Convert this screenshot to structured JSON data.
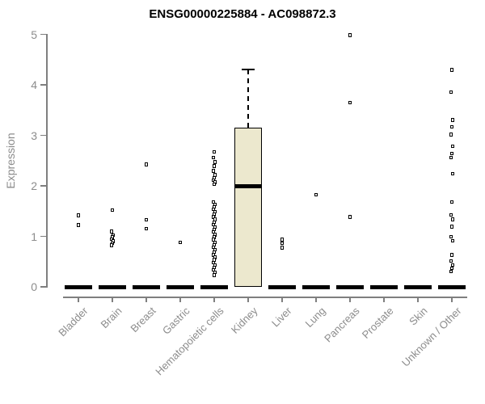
{
  "chart_data": {
    "type": "boxplot",
    "title": "ENSG00000225884 - AC098872.3",
    "ylabel": "Expression",
    "xlabel": "",
    "ylim": [
      0,
      5
    ],
    "yticks": [
      0,
      1,
      2,
      3,
      4,
      5
    ],
    "grid": false,
    "legend": "none",
    "categories": [
      "Bladder",
      "Brain",
      "Breast",
      "Gastric",
      "Hematopoietic cells",
      "Kidney",
      "Liver",
      "Lung",
      "Pancreas",
      "Prostate",
      "Skin",
      "Unknown / Other"
    ],
    "series": [
      {
        "name": "Bladder",
        "q1": 0,
        "median": 0,
        "q3": 0,
        "whisker_low": 0,
        "whisker_high": 0,
        "outliers": [
          1.41,
          1.22
        ]
      },
      {
        "name": "Brain",
        "q1": 0,
        "median": 0,
        "q3": 0,
        "whisker_low": 0,
        "whisker_high": 0,
        "outliers": [
          1.52,
          1.09,
          1.02,
          0.98,
          0.94,
          0.9,
          0.86,
          0.82
        ]
      },
      {
        "name": "Breast",
        "q1": 0,
        "median": 0,
        "q3": 0,
        "whisker_low": 0,
        "whisker_high": 0,
        "outliers": [
          2.42,
          1.32,
          1.15
        ]
      },
      {
        "name": "Gastric",
        "q1": 0,
        "median": 0,
        "q3": 0,
        "whisker_low": 0,
        "whisker_high": 0,
        "outliers": [
          0.88
        ]
      },
      {
        "name": "Hematopoietic cells",
        "q1": 0,
        "median": 0,
        "q3": 0,
        "whisker_low": 0,
        "whisker_high": 0,
        "outliers": [
          2.67,
          2.56,
          2.47,
          2.39,
          2.29,
          2.21,
          2.16,
          2.11,
          2.07,
          2.03,
          1.68,
          1.63,
          1.58,
          1.53,
          1.48,
          1.43,
          1.38,
          1.33,
          1.28,
          1.23,
          1.18,
          1.13,
          1.08,
          1.03,
          0.98,
          0.93,
          0.88,
          0.83,
          0.78,
          0.73,
          0.68,
          0.63,
          0.58,
          0.53,
          0.48,
          0.43,
          0.38,
          0.33,
          0.28,
          0.23
        ]
      },
      {
        "name": "Kidney",
        "q1": 0,
        "median": 2.0,
        "q3": 3.15,
        "whisker_low": 0,
        "whisker_high": 4.3,
        "outliers": []
      },
      {
        "name": "Liver",
        "q1": 0,
        "median": 0,
        "q3": 0,
        "whisker_low": 0,
        "whisker_high": 0,
        "outliers": [
          0.93,
          0.86,
          0.77
        ]
      },
      {
        "name": "Lung",
        "q1": 0,
        "median": 0,
        "q3": 0,
        "whisker_low": 0,
        "whisker_high": 0,
        "outliers": [
          1.82
        ]
      },
      {
        "name": "Pancreas",
        "q1": 0,
        "median": 0,
        "q3": 0,
        "whisker_low": 0,
        "whisker_high": 0,
        "outliers": [
          4.98,
          3.64,
          1.38
        ]
      },
      {
        "name": "Prostate",
        "q1": 0,
        "median": 0,
        "q3": 0,
        "whisker_low": 0,
        "whisker_high": 0,
        "outliers": []
      },
      {
        "name": "Skin",
        "q1": 0,
        "median": 0,
        "q3": 0,
        "whisker_low": 0,
        "whisker_high": 0,
        "outliers": []
      },
      {
        "name": "Unknown / Other",
        "q1": 0,
        "median": 0,
        "q3": 0,
        "whisker_low": 0,
        "whisker_high": 0,
        "outliers": [
          4.29,
          3.85,
          3.3,
          3.16,
          3.01,
          2.78,
          2.64,
          2.56,
          2.24,
          1.68,
          1.42,
          1.33,
          1.19,
          0.99,
          0.91,
          0.63,
          0.51,
          0.43,
          0.36,
          0.3
        ]
      }
    ],
    "style": {
      "box_fill": "#ECE8CE",
      "box_border": "#000000",
      "axis_color": "#7f7f7f",
      "tick_text_color": "#8c8c8c",
      "title_color": "#000000",
      "point_shape": "open-square"
    }
  }
}
